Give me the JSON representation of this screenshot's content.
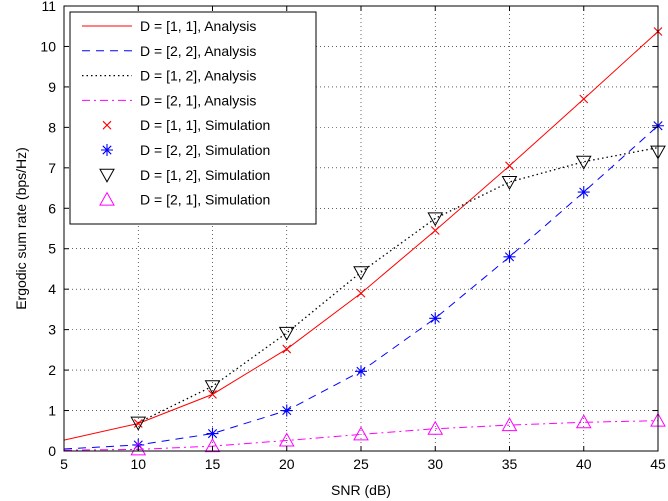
{
  "chart_data": {
    "type": "line",
    "xlabel": "SNR (dB)",
    "ylabel": "Ergodic sum rate (bps/Hz)",
    "xlim": [
      5,
      45
    ],
    "ylim": [
      0,
      11
    ],
    "xticks": [
      5,
      10,
      15,
      20,
      25,
      30,
      35,
      40,
      45
    ],
    "yticks": [
      0,
      1,
      2,
      3,
      4,
      5,
      6,
      7,
      8,
      9,
      10,
      11
    ],
    "grid": true,
    "legend_position": "top-left",
    "series": [
      {
        "name": "D = [1, 1], Analysis",
        "style": "solid",
        "color": "#ff0000",
        "x": [
          5,
          10,
          15,
          20,
          25,
          30,
          35,
          40,
          45
        ],
        "y": [
          0.27,
          0.68,
          1.4,
          2.52,
          3.9,
          5.45,
          7.05,
          8.7,
          10.37
        ]
      },
      {
        "name": "D = [2, 2], Analysis",
        "style": "dashed",
        "color": "#0000ff",
        "x": [
          5,
          10,
          15,
          20,
          25,
          30,
          35,
          40,
          45
        ],
        "y": [
          0.05,
          0.15,
          0.43,
          1.0,
          1.97,
          3.28,
          4.8,
          6.4,
          8.04
        ]
      },
      {
        "name": "D = [1, 2], Analysis",
        "style": "dotted",
        "color": "#000000",
        "x": [
          10,
          15,
          20,
          25,
          30,
          35,
          40,
          45
        ],
        "y": [
          0.7,
          1.6,
          2.92,
          4.42,
          5.75,
          6.65,
          7.15,
          7.5
        ]
      },
      {
        "name": "D = [2, 1], Analysis",
        "style": "dashdot",
        "color": "#ff00ff",
        "x": [
          5,
          10,
          15,
          20,
          25,
          30,
          35,
          40,
          45
        ],
        "y": [
          0.02,
          0.04,
          0.12,
          0.26,
          0.41,
          0.55,
          0.64,
          0.71,
          0.75
        ]
      },
      {
        "name": "D = [1, 1], Simulation",
        "marker": "x",
        "color": "#ff0000",
        "x": [
          10,
          15,
          20,
          25,
          30,
          35,
          40,
          45
        ],
        "y": [
          0.68,
          1.4,
          2.52,
          3.9,
          5.45,
          7.05,
          8.7,
          10.37
        ]
      },
      {
        "name": "D = [2, 2], Simulation",
        "marker": "asterisk",
        "color": "#0000ff",
        "x": [
          10,
          15,
          20,
          25,
          30,
          35,
          40,
          45
        ],
        "y": [
          0.15,
          0.43,
          1.0,
          1.97,
          3.28,
          4.8,
          6.4,
          8.04
        ]
      },
      {
        "name": "D = [1, 2], Simulation",
        "marker": "triangle-down",
        "color": "#000000",
        "x": [
          10,
          15,
          20,
          25,
          30,
          35,
          40,
          45
        ],
        "y": [
          0.7,
          1.6,
          2.92,
          4.42,
          5.75,
          6.65,
          7.15,
          7.4
        ]
      },
      {
        "name": "D = [2, 1], Simulation",
        "marker": "triangle-up",
        "color": "#ff00ff",
        "x": [
          10,
          15,
          20,
          25,
          30,
          35,
          40,
          45
        ],
        "y": [
          0.04,
          0.12,
          0.26,
          0.41,
          0.55,
          0.64,
          0.71,
          0.75
        ]
      }
    ]
  }
}
